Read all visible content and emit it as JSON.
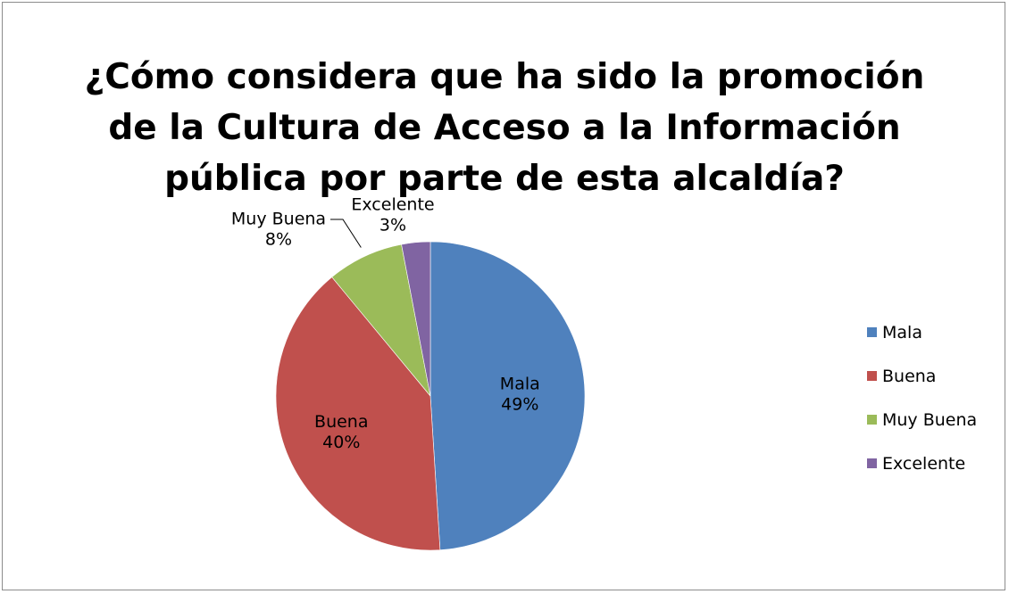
{
  "chart_data": {
    "type": "pie",
    "title_lines": [
      "¿Cómo considera que ha sido la  promoción",
      "de la Cultura de Acceso a la Información",
      "pública por parte de esta alcaldía?"
    ],
    "categories": [
      "Mala",
      "Buena",
      "Muy Buena",
      "Excelente"
    ],
    "values": [
      49,
      40,
      8,
      3
    ],
    "value_labels": [
      "49%",
      "40%",
      "8%",
      "3%"
    ],
    "colors": [
      "#4f81bd",
      "#c0504d",
      "#9bbb59",
      "#8064a2"
    ],
    "legend": {
      "position": "right",
      "entries": [
        "Mala",
        "Buena",
        "Muy Buena",
        "Excelente"
      ]
    }
  }
}
